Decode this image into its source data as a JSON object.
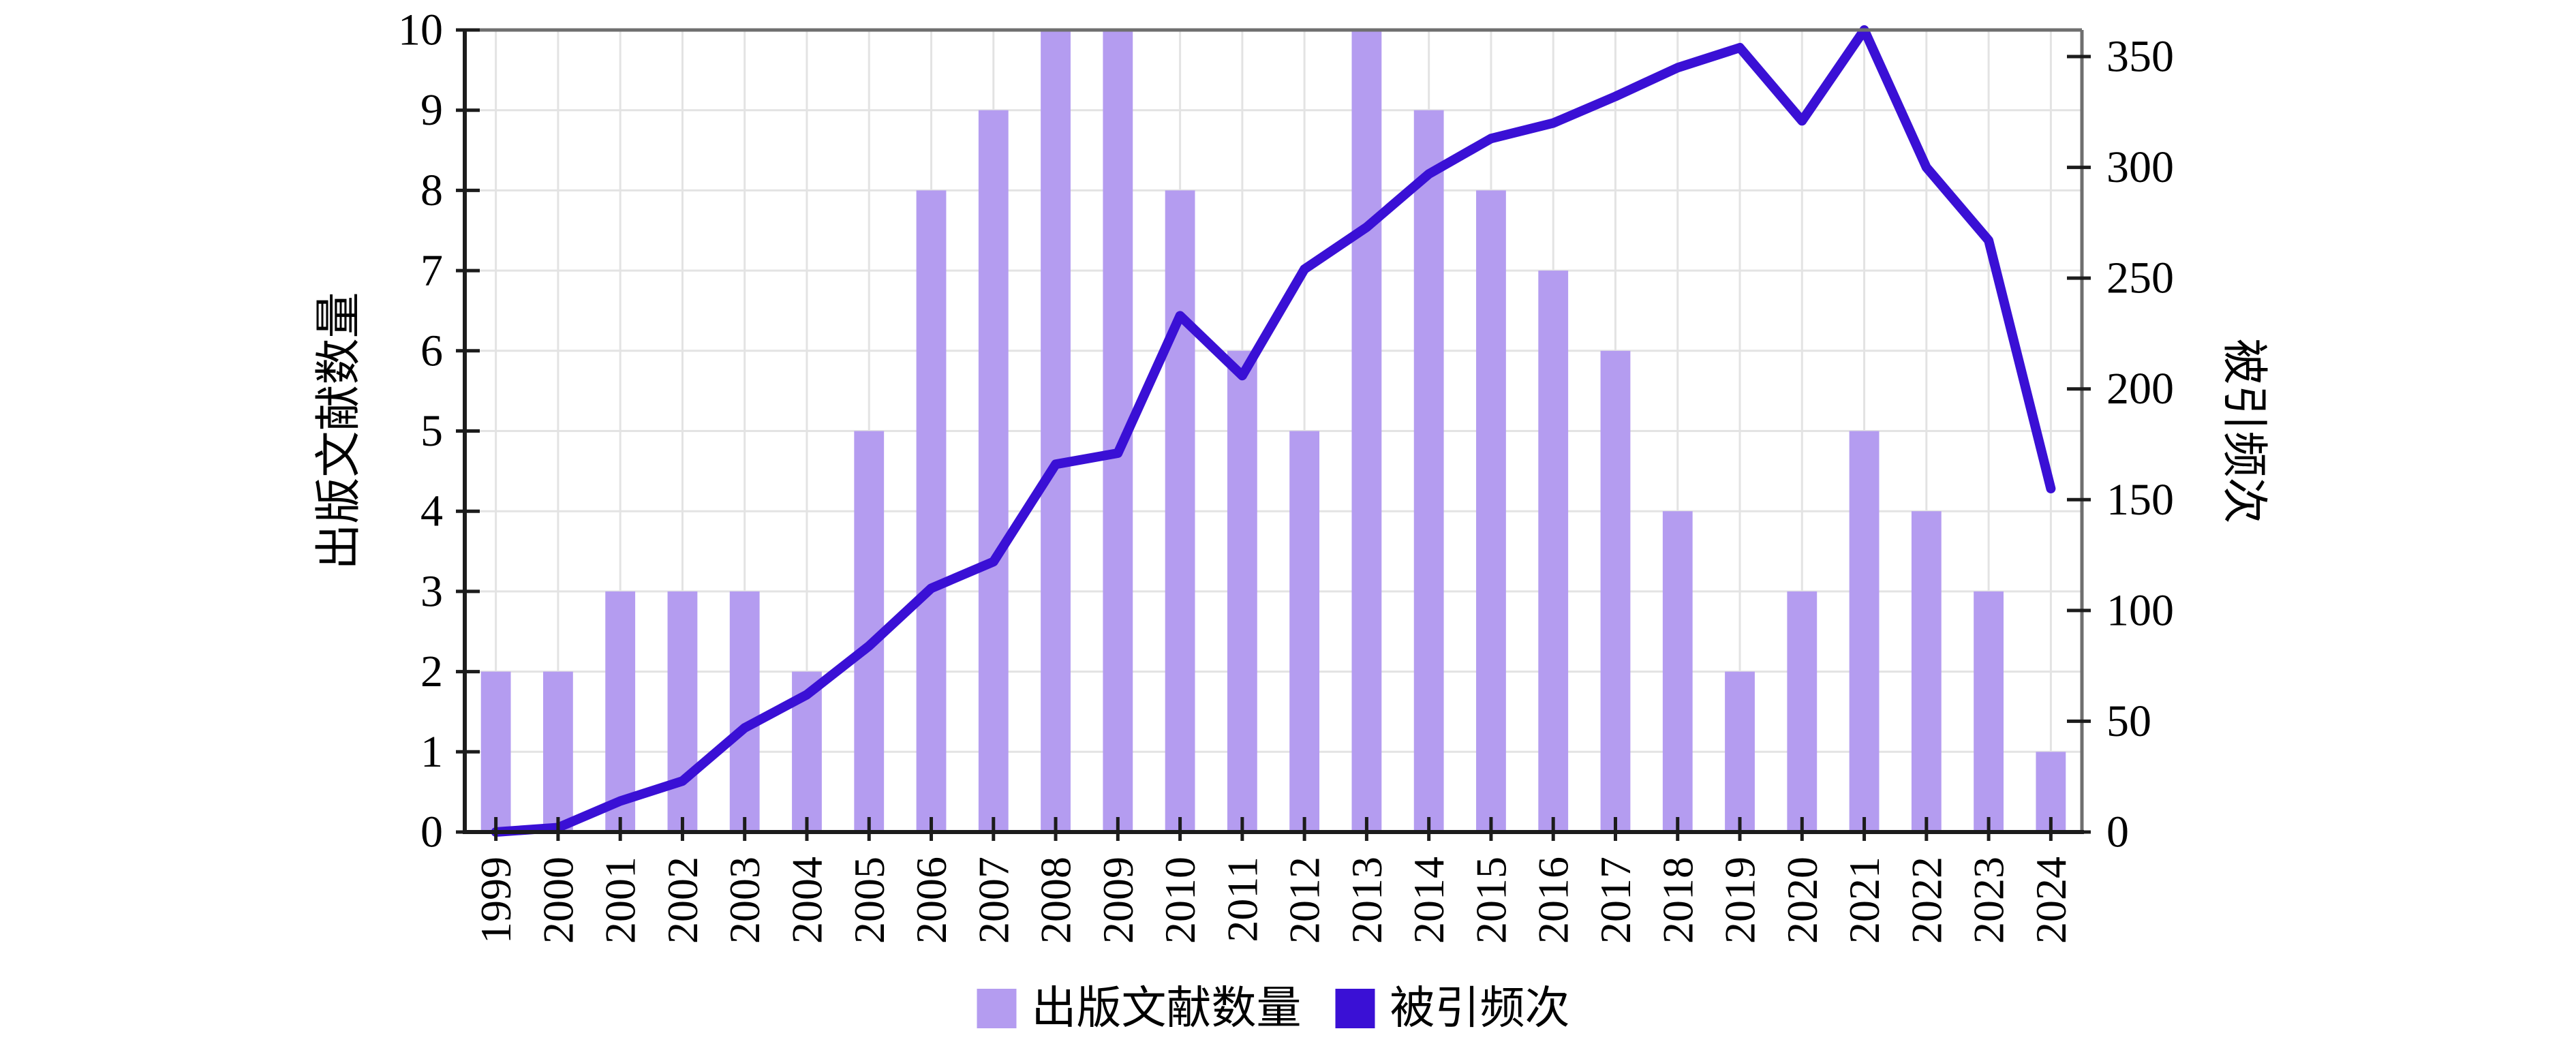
{
  "chart_data": {
    "type": "bar",
    "subtype": "dual-axis bar+line combo",
    "categories": [
      "1999",
      "2000",
      "2001",
      "2002",
      "2003",
      "2004",
      "2005",
      "2006",
      "2007",
      "2008",
      "2009",
      "2010",
      "2011",
      "2012",
      "2013",
      "2014",
      "2015",
      "2016",
      "2017",
      "2018",
      "2019",
      "2020",
      "2021",
      "2022",
      "2023",
      "2024"
    ],
    "series": [
      {
        "name": "出版文献数量",
        "type": "bar",
        "axis": "left",
        "color": "#b49cf0",
        "values": [
          2,
          2,
          3,
          3,
          3,
          2,
          5,
          8,
          9,
          10,
          10,
          8,
          6,
          5,
          10,
          9,
          8,
          7,
          6,
          4,
          2,
          3,
          5,
          4,
          3,
          1
        ]
      },
      {
        "name": "被引频次",
        "type": "line",
        "axis": "right",
        "color": "#3a10d5",
        "values": [
          0,
          2,
          14,
          23,
          47,
          62,
          84,
          110,
          122,
          166,
          171,
          233,
          206,
          254,
          273,
          297,
          313,
          320,
          332,
          345,
          354,
          321,
          362,
          300,
          267,
          155
        ]
      }
    ],
    "left_axis": {
      "label": "出版文献数量",
      "min": 0,
      "max": 10,
      "tick_labels": [
        "0",
        "1",
        "2",
        "3",
        "4",
        "5",
        "6",
        "7",
        "8",
        "9",
        "10"
      ],
      "tick_values": [
        0,
        1,
        2,
        3,
        4,
        5,
        6,
        7,
        8,
        9,
        10
      ]
    },
    "right_axis": {
      "label": "被引频次",
      "min": 0,
      "max": 362,
      "tick_labels": [
        "0",
        "50",
        "100",
        "150",
        "200",
        "250",
        "300",
        "350"
      ],
      "tick_values": [
        0,
        50,
        100,
        150,
        200,
        250,
        300,
        350
      ]
    },
    "xlabel": "",
    "title": "",
    "grid": true,
    "x_tick_rotation_deg": 90,
    "legend_position": "bottom-center"
  },
  "legend": {
    "items": [
      {
        "label": "出版文献数量",
        "swatch_color": "#b49cf0"
      },
      {
        "label": "被引频次",
        "swatch_color": "#3a10d5"
      }
    ]
  },
  "colors": {
    "background": "#ffffff",
    "bar_fill": "#b49cf0",
    "line_stroke": "#3a10d5",
    "grid_line": "#e3e3e3",
    "spine_main": "#1c1c1c",
    "spine_frame": "#6f6f6f",
    "tick_mark": "#1c1c1c",
    "text": "#000000"
  }
}
